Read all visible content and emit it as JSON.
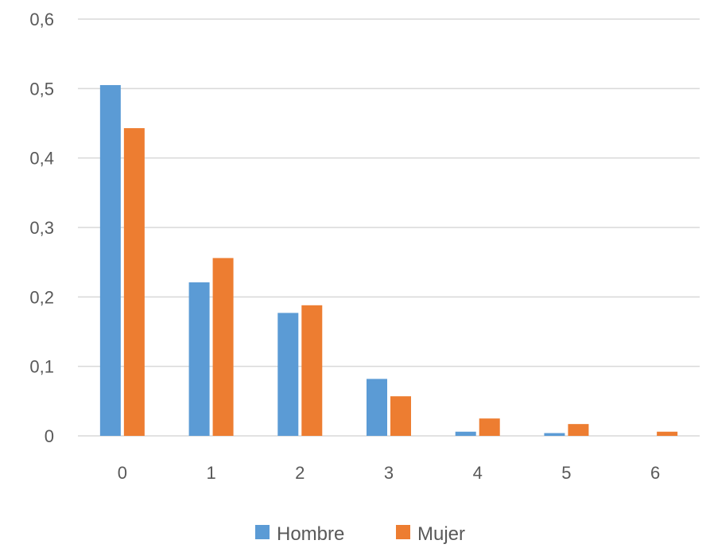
{
  "chart_data": {
    "type": "bar",
    "categories": [
      "0",
      "1",
      "2",
      "3",
      "4",
      "5",
      "6"
    ],
    "series": [
      {
        "name": "Hombre",
        "color": "#5b9bd5",
        "values": [
          0.505,
          0.221,
          0.177,
          0.082,
          0.006,
          0.004,
          0.0
        ]
      },
      {
        "name": "Mujer",
        "color": "#ed7d31",
        "values": [
          0.443,
          0.256,
          0.188,
          0.057,
          0.025,
          0.017,
          0.006
        ]
      }
    ],
    "y_ticks": [
      "0",
      "0,1",
      "0,2",
      "0,3",
      "0,4",
      "0,5",
      "0,6"
    ],
    "ylim": [
      0,
      0.6
    ],
    "grid": true,
    "legend_position": "bottom"
  }
}
